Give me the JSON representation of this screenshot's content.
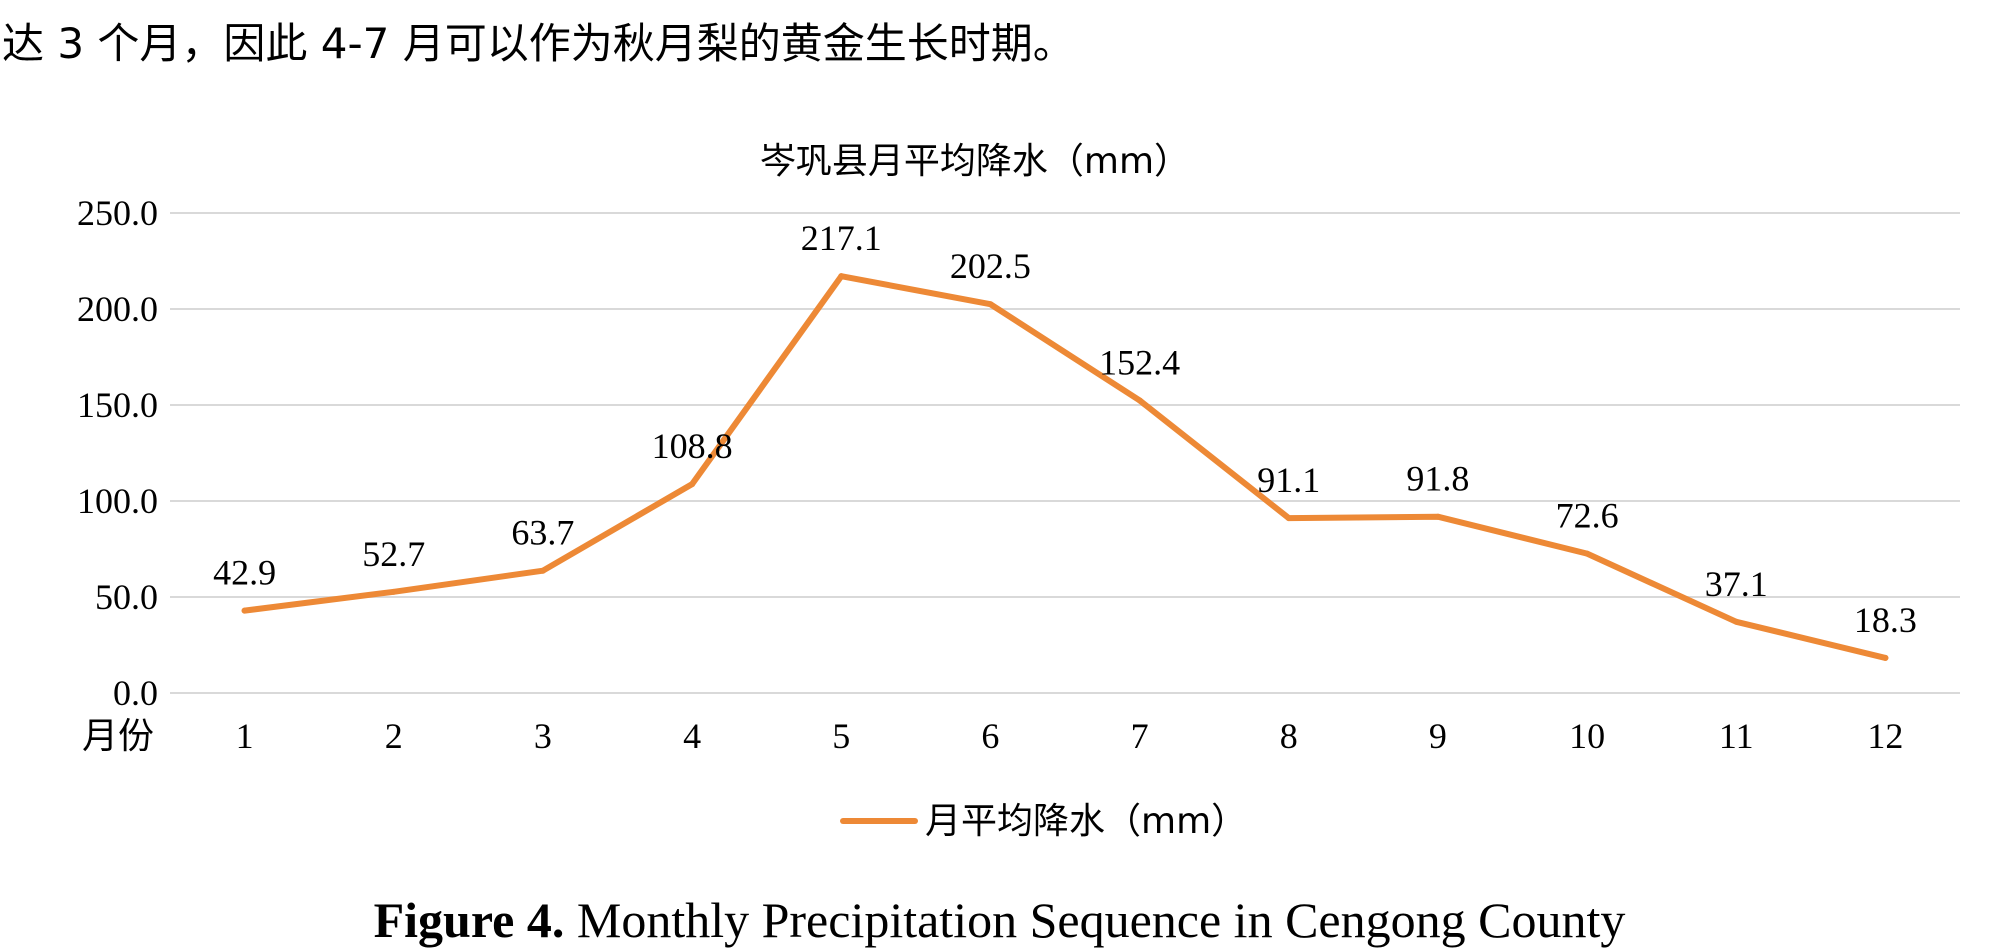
{
  "intro_text": "达 3 个月，因此 4-7 月可以作为秋月梨的黄金生长时期。",
  "chart_data": {
    "type": "line",
    "title": "岑巩县月平均降水（mm）",
    "xlabel": "月份",
    "ylabel": "",
    "categories": [
      "1",
      "2",
      "3",
      "4",
      "5",
      "6",
      "7",
      "8",
      "9",
      "10",
      "11",
      "12"
    ],
    "series": [
      {
        "name": "月平均降水（mm）",
        "color": "#ed8936",
        "values": [
          42.9,
          52.7,
          63.7,
          108.8,
          217.1,
          202.5,
          152.4,
          91.1,
          91.8,
          72.6,
          37.1,
          18.3
        ],
        "labels": [
          "42.9",
          "52.7",
          "63.7",
          "108.8",
          "217.1",
          "202.5",
          "152.4",
          "91.1",
          "91.8",
          "72.6",
          "37.1",
          "18.3"
        ]
      }
    ],
    "ylim": [
      0,
      250
    ],
    "yticks": [
      "0.0",
      "50.0",
      "100.0",
      "150.0",
      "200.0",
      "250.0"
    ],
    "grid": true,
    "legend": "bottom-center",
    "gridline_color": "#d9d9d9"
  },
  "caption": {
    "label": "Figure 4.",
    "text": " Monthly Precipitation Sequence in Cengong County"
  }
}
